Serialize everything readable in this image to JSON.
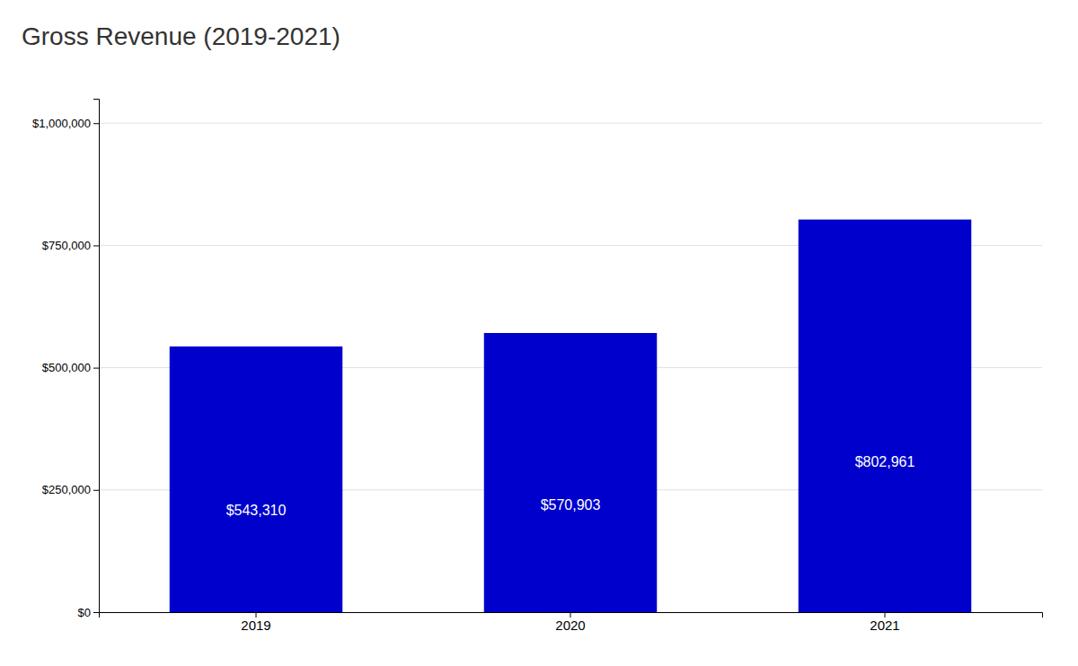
{
  "chart_data": {
    "type": "bar",
    "title": "Gross Revenue (2019-2021)",
    "categories": [
      "2019",
      "2020",
      "2021"
    ],
    "values": [
      543310,
      570903,
      802961
    ],
    "value_labels": [
      "$543,310",
      "$570,903",
      "$802,961"
    ],
    "data_labels": true,
    "color": "#0000CC",
    "ylim": [
      0,
      1050000
    ],
    "yticks": [
      {
        "value": 0,
        "label": "$0"
      },
      {
        "value": 250000,
        "label": "$250,000"
      },
      {
        "value": 500000,
        "label": "$500,000"
      },
      {
        "value": 750000,
        "label": "$750,000"
      },
      {
        "value": 1000000,
        "label": "$1,000,000"
      }
    ],
    "grid": true
  }
}
